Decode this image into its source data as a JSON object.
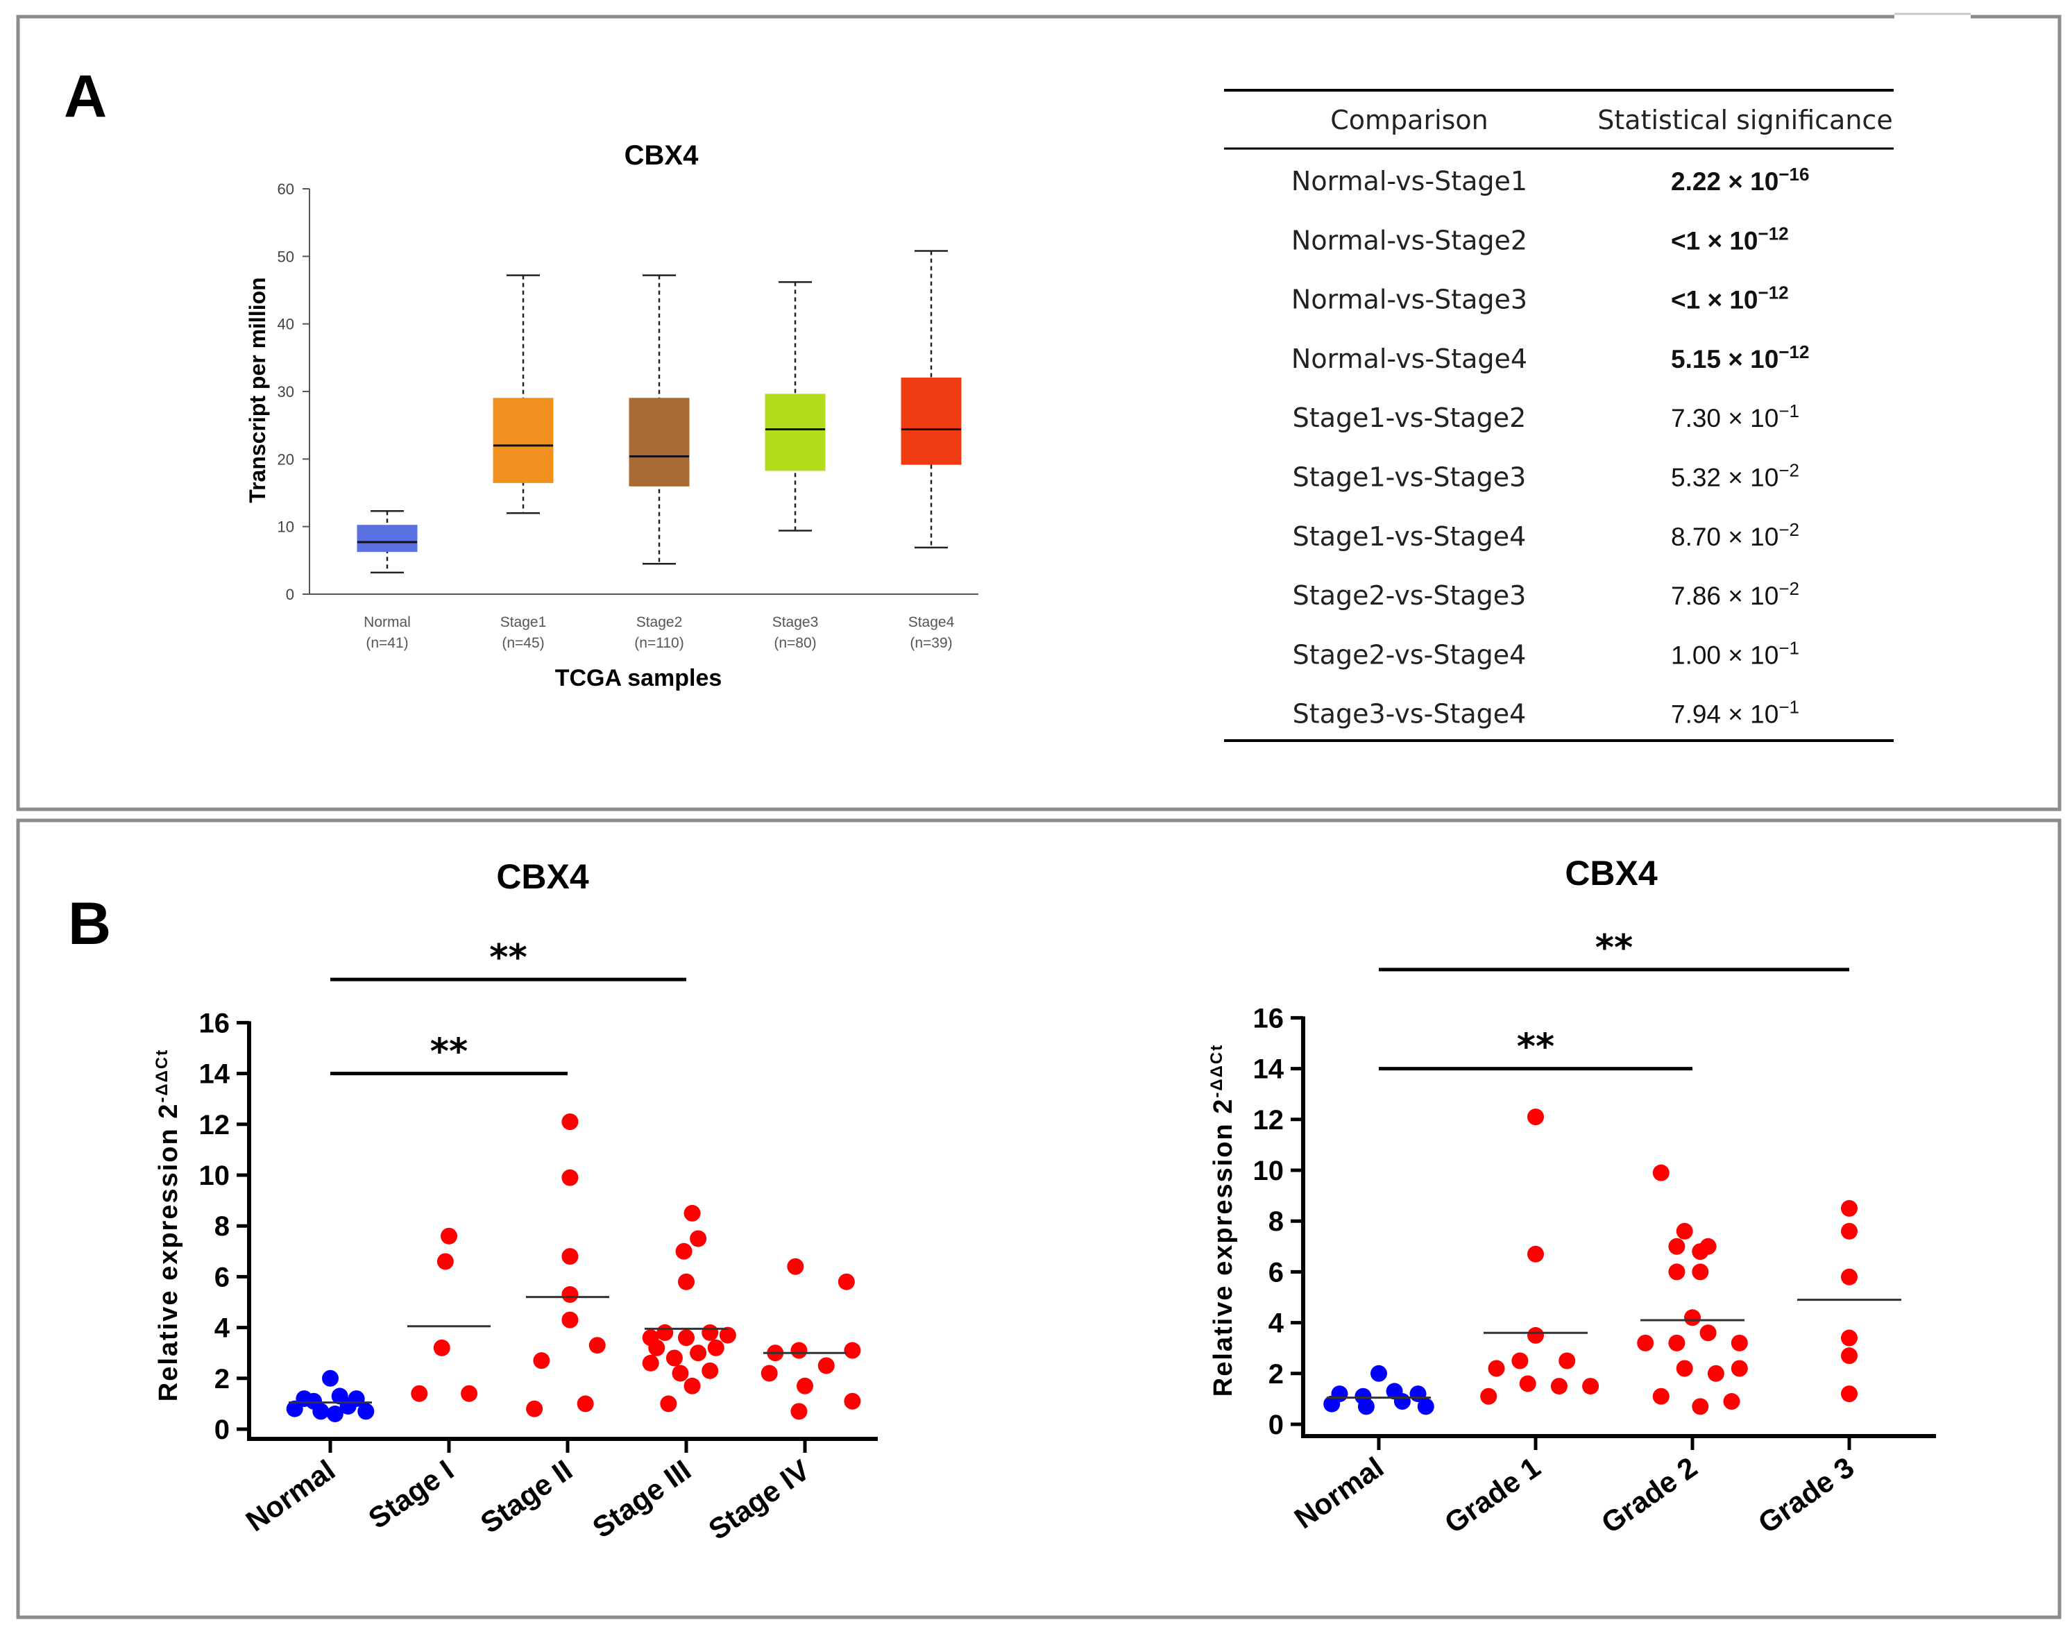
{
  "panel_a": {
    "label": "A",
    "table": {
      "headers": [
        "Comparison",
        "Statistical significance"
      ],
      "rows": [
        {
          "comparison": "Normal-vs-Stage1",
          "mantissa": "2.22",
          "exponent": "−16",
          "bold": true
        },
        {
          "comparison": "Normal-vs-Stage2",
          "mantissa": "<1",
          "exponent": "−12",
          "bold": true
        },
        {
          "comparison": "Normal-vs-Stage3",
          "mantissa": "<1",
          "exponent": "−12",
          "bold": true
        },
        {
          "comparison": "Normal-vs-Stage4",
          "mantissa": "5.15",
          "exponent": "−12",
          "bold": true
        },
        {
          "comparison": "Stage1-vs-Stage2",
          "mantissa": "7.30",
          "exponent": "−1",
          "bold": false
        },
        {
          "comparison": "Stage1-vs-Stage3",
          "mantissa": "5.32",
          "exponent": "−2",
          "bold": false
        },
        {
          "comparison": "Stage1-vs-Stage4",
          "mantissa": "8.70",
          "exponent": "−2",
          "bold": false
        },
        {
          "comparison": "Stage2-vs-Stage3",
          "mantissa": "7.86",
          "exponent": "−2",
          "bold": false
        },
        {
          "comparison": "Stage2-vs-Stage4",
          "mantissa": "1.00",
          "exponent": "−1",
          "bold": false
        },
        {
          "comparison": "Stage3-vs-Stage4",
          "mantissa": "7.94",
          "exponent": "−1",
          "bold": false
        }
      ],
      "times_ten": "× 10"
    }
  },
  "panel_b": {
    "label": "B"
  },
  "chart_data": [
    {
      "type": "box",
      "title": "CBX4",
      "xlabel": "TCGA samples",
      "ylabel": "Transcript per million",
      "ylim": [
        0,
        60
      ],
      "yticks": [
        0,
        10,
        20,
        30,
        40,
        50,
        60
      ],
      "boxes": [
        {
          "name": "Normal",
          "n_label": "(n=41)",
          "min": 3.2,
          "q1": 6.3,
          "median": 7.7,
          "q3": 10.2,
          "max": 12.3,
          "color": "#5a6fe0"
        },
        {
          "name": "Stage1",
          "n_label": "(n=45)",
          "min": 12.0,
          "q1": 16.5,
          "median": 22.0,
          "q3": 29.0,
          "max": 47.2,
          "color": "#f0901f"
        },
        {
          "name": "Stage2",
          "n_label": "(n=110)",
          "min": 4.5,
          "q1": 16.0,
          "median": 20.4,
          "q3": 29.0,
          "max": 47.2,
          "color": "#a96a33"
        },
        {
          "name": "Stage3",
          "n_label": "(n=80)",
          "min": 9.4,
          "q1": 18.3,
          "median": 24.4,
          "q3": 29.6,
          "max": 46.2,
          "color": "#b2dd1c"
        },
        {
          "name": "Stage4",
          "n_label": "(n=39)",
          "min": 6.9,
          "q1": 19.2,
          "median": 24.4,
          "q3": 32.0,
          "max": 50.8,
          "color": "#ef3b12"
        }
      ]
    },
    {
      "type": "scatter",
      "title": "CBX4",
      "ylabel": "Relative expression 2",
      "ylabel_sup": "-ΔΔCt",
      "ylim": [
        0,
        16
      ],
      "yticks": [
        0,
        2,
        4,
        6,
        8,
        10,
        12,
        14,
        16
      ],
      "categories": [
        "Normal",
        "Stage I",
        "Stage II",
        "Stage III",
        "Stage IV"
      ],
      "groups": [
        {
          "name": "Normal",
          "color": "#0000ff",
          "mean": 1.05,
          "points": [
            {
              "o": 0,
              "v": 2.0
            },
            {
              "o": -0.22,
              "v": 1.2
            },
            {
              "o": 0.08,
              "v": 1.3
            },
            {
              "o": 0.22,
              "v": 1.2
            },
            {
              "o": -0.14,
              "v": 1.1
            },
            {
              "o": -0.3,
              "v": 0.8
            },
            {
              "o": 0.15,
              "v": 0.9
            },
            {
              "o": -0.08,
              "v": 0.7
            },
            {
              "o": 0.3,
              "v": 0.7
            },
            {
              "o": 0.04,
              "v": 0.6
            }
          ]
        },
        {
          "name": "Stage I",
          "color": "#ff0000",
          "mean": 4.05,
          "points": [
            {
              "o": 0.0,
              "v": 7.6
            },
            {
              "o": -0.03,
              "v": 6.6
            },
            {
              "o": -0.06,
              "v": 3.2
            },
            {
              "o": -0.25,
              "v": 1.4
            },
            {
              "o": 0.17,
              "v": 1.4
            }
          ]
        },
        {
          "name": "Stage II",
          "color": "#ff0000",
          "mean": 5.2,
          "points": [
            {
              "o": 0.02,
              "v": 12.1
            },
            {
              "o": 0.02,
              "v": 9.9
            },
            {
              "o": 0.02,
              "v": 6.8
            },
            {
              "o": 0.02,
              "v": 5.3
            },
            {
              "o": 0.02,
              "v": 4.3
            },
            {
              "o": -0.22,
              "v": 2.7
            },
            {
              "o": 0.25,
              "v": 3.3
            },
            {
              "o": -0.28,
              "v": 0.8
            },
            {
              "o": 0.15,
              "v": 1.0
            }
          ]
        },
        {
          "name": "Stage III",
          "color": "#ff0000",
          "mean": 3.95,
          "points": [
            {
              "o": 0.05,
              "v": 8.5
            },
            {
              "o": 0.1,
              "v": 7.5
            },
            {
              "o": -0.02,
              "v": 7.0
            },
            {
              "o": 0.0,
              "v": 5.8
            },
            {
              "o": -0.3,
              "v": 3.6
            },
            {
              "o": -0.18,
              "v": 3.8
            },
            {
              "o": 0.0,
              "v": 3.6
            },
            {
              "o": 0.2,
              "v": 3.8
            },
            {
              "o": 0.35,
              "v": 3.7
            },
            {
              "o": -0.25,
              "v": 3.2
            },
            {
              "o": -0.1,
              "v": 2.8
            },
            {
              "o": 0.1,
              "v": 3.0
            },
            {
              "o": 0.25,
              "v": 3.2
            },
            {
              "o": -0.3,
              "v": 2.6
            },
            {
              "o": -0.05,
              "v": 2.2
            },
            {
              "o": 0.2,
              "v": 2.3
            },
            {
              "o": 0.05,
              "v": 1.7
            },
            {
              "o": -0.15,
              "v": 1.0
            }
          ]
        },
        {
          "name": "Stage IV",
          "color": "#ff0000",
          "mean": 3.0,
          "points": [
            {
              "o": -0.08,
              "v": 6.4
            },
            {
              "o": 0.35,
              "v": 5.8
            },
            {
              "o": -0.25,
              "v": 3.0
            },
            {
              "o": -0.05,
              "v": 3.1
            },
            {
              "o": 0.18,
              "v": 2.5
            },
            {
              "o": 0.4,
              "v": 3.1
            },
            {
              "o": -0.3,
              "v": 2.2
            },
            {
              "o": 0.0,
              "v": 1.7
            },
            {
              "o": 0.4,
              "v": 1.1
            },
            {
              "o": -0.05,
              "v": 0.7
            }
          ]
        }
      ],
      "brackets": [
        {
          "from": "Normal",
          "to": "Stage III",
          "label": "**",
          "y": 17.7
        },
        {
          "from": "Normal",
          "to": "Stage II",
          "label": "**",
          "y": 14.0
        }
      ]
    },
    {
      "type": "scatter",
      "title": "CBX4",
      "ylabel": "Relative expression 2",
      "ylabel_sup": "-ΔΔCt",
      "ylim": [
        0,
        16
      ],
      "yticks": [
        0,
        2,
        4,
        6,
        8,
        10,
        12,
        14,
        16
      ],
      "categories": [
        "Normal",
        "Grade 1",
        "Grade 2",
        "Grade 3"
      ],
      "groups": [
        {
          "name": "Normal",
          "color": "#0000ff",
          "mean": 1.05,
          "points": [
            {
              "o": 0,
              "v": 2.0
            },
            {
              "o": -0.25,
              "v": 1.2
            },
            {
              "o": 0.1,
              "v": 1.3
            },
            {
              "o": 0.25,
              "v": 1.2
            },
            {
              "o": -0.1,
              "v": 1.1
            },
            {
              "o": -0.3,
              "v": 0.8
            },
            {
              "o": 0.15,
              "v": 0.9
            },
            {
              "o": -0.08,
              "v": 0.7
            },
            {
              "o": 0.3,
              "v": 0.7
            }
          ]
        },
        {
          "name": "Grade 1",
          "color": "#ff0000",
          "mean": 3.6,
          "points": [
            {
              "o": 0.0,
              "v": 12.1
            },
            {
              "o": 0.0,
              "v": 6.7
            },
            {
              "o": 0.0,
              "v": 3.5
            },
            {
              "o": -0.25,
              "v": 2.2
            },
            {
              "o": -0.1,
              "v": 2.5
            },
            {
              "o": 0.2,
              "v": 2.5
            },
            {
              "o": -0.3,
              "v": 1.1
            },
            {
              "o": -0.05,
              "v": 1.6
            },
            {
              "o": 0.15,
              "v": 1.5
            },
            {
              "o": 0.35,
              "v": 1.5
            }
          ]
        },
        {
          "name": "Grade 2",
          "color": "#ff0000",
          "mean": 4.1,
          "points": [
            {
              "o": -0.2,
              "v": 9.9
            },
            {
              "o": -0.05,
              "v": 7.6
            },
            {
              "o": -0.1,
              "v": 7.0
            },
            {
              "o": 0.1,
              "v": 7.0
            },
            {
              "o": 0.05,
              "v": 6.8
            },
            {
              "o": -0.1,
              "v": 6.0
            },
            {
              "o": 0.05,
              "v": 6.0
            },
            {
              "o": -0.3,
              "v": 3.2
            },
            {
              "o": -0.1,
              "v": 3.2
            },
            {
              "o": 0.0,
              "v": 4.2
            },
            {
              "o": 0.1,
              "v": 3.6
            },
            {
              "o": 0.3,
              "v": 3.2
            },
            {
              "o": -0.05,
              "v": 2.2
            },
            {
              "o": 0.15,
              "v": 2.0
            },
            {
              "o": 0.3,
              "v": 2.2
            },
            {
              "o": -0.2,
              "v": 1.1
            },
            {
              "o": 0.05,
              "v": 0.7
            },
            {
              "o": 0.25,
              "v": 0.9
            }
          ]
        },
        {
          "name": "Grade 3",
          "color": "#ff0000",
          "mean": 4.9,
          "points": [
            {
              "o": 0.0,
              "v": 8.5
            },
            {
              "o": 0.0,
              "v": 7.6
            },
            {
              "o": 0.0,
              "v": 5.8
            },
            {
              "o": 0.0,
              "v": 3.4
            },
            {
              "o": 0.0,
              "v": 2.7
            },
            {
              "o": 0.0,
              "v": 1.2
            }
          ]
        }
      ],
      "brackets": [
        {
          "from": "Normal",
          "to": "Grade 3",
          "label": "**",
          "y": 17.9
        },
        {
          "from": "Normal",
          "to": "Grade 2",
          "label": "**",
          "y": 14.0
        }
      ]
    }
  ]
}
